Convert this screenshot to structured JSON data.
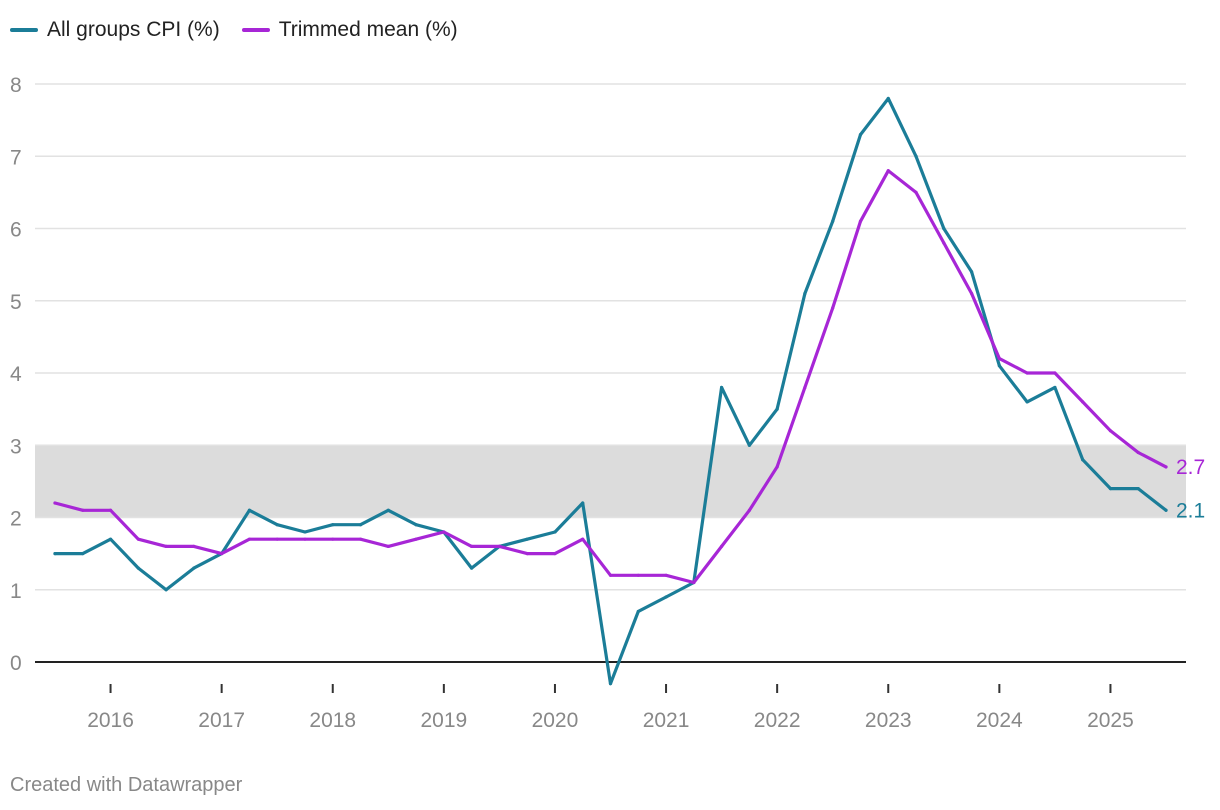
{
  "chart_data": {
    "type": "line",
    "title": "",
    "xlabel": "",
    "ylabel": "",
    "ylim": [
      0,
      8
    ],
    "yticks": [
      0,
      1,
      2,
      3,
      4,
      5,
      6,
      7,
      8
    ],
    "xticks": [
      2016,
      2017,
      2018,
      2019,
      2020,
      2021,
      2022,
      2023,
      2024,
      2025
    ],
    "xlim": [
      2015.33,
      2025.7
    ],
    "grid": true,
    "legend_position": "top-left",
    "shaded_band": {
      "from": 2,
      "to": 3,
      "color": "#dcdcdc"
    },
    "x": [
      2015.5,
      2015.75,
      2016.0,
      2016.25,
      2016.5,
      2016.75,
      2017.0,
      2017.25,
      2017.5,
      2017.75,
      2018.0,
      2018.25,
      2018.5,
      2018.75,
      2019.0,
      2019.25,
      2019.5,
      2019.75,
      2020.0,
      2020.25,
      2020.5,
      2020.75,
      2021.0,
      2021.25,
      2021.5,
      2021.75,
      2022.0,
      2022.25,
      2022.5,
      2022.75,
      2023.0,
      2023.25,
      2023.5,
      2023.75,
      2024.0,
      2024.25,
      2024.5,
      2024.75,
      2025.0,
      2025.25,
      2025.5
    ],
    "series": [
      {
        "name": "All groups CPI (%)",
        "color": "#1b7d98",
        "values": [
          1.5,
          1.5,
          1.7,
          1.3,
          1.0,
          1.3,
          1.5,
          2.1,
          1.9,
          1.8,
          1.9,
          1.9,
          2.1,
          1.9,
          1.8,
          1.3,
          1.6,
          1.7,
          1.8,
          2.2,
          -0.3,
          0.7,
          0.9,
          1.1,
          3.8,
          3.0,
          3.5,
          5.1,
          6.1,
          7.3,
          7.8,
          7.0,
          6.0,
          5.4,
          4.1,
          3.6,
          3.8,
          2.8,
          2.4,
          2.4,
          2.1
        ],
        "end_label": "2.1"
      },
      {
        "name": "Trimmed mean (%)",
        "color": "#a726d6",
        "values": [
          2.2,
          2.1,
          2.1,
          1.7,
          1.6,
          1.6,
          1.5,
          1.7,
          1.7,
          1.7,
          1.7,
          1.7,
          1.6,
          1.7,
          1.8,
          1.6,
          1.6,
          1.5,
          1.5,
          1.7,
          1.2,
          1.2,
          1.2,
          1.1,
          1.6,
          2.1,
          2.7,
          3.8,
          4.9,
          6.1,
          6.8,
          6.5,
          5.8,
          5.1,
          4.2,
          4.0,
          4.0,
          3.6,
          3.2,
          2.9,
          2.7
        ],
        "end_label": "2.7"
      }
    ]
  },
  "footer": {
    "credit": "Created with Datawrapper"
  }
}
